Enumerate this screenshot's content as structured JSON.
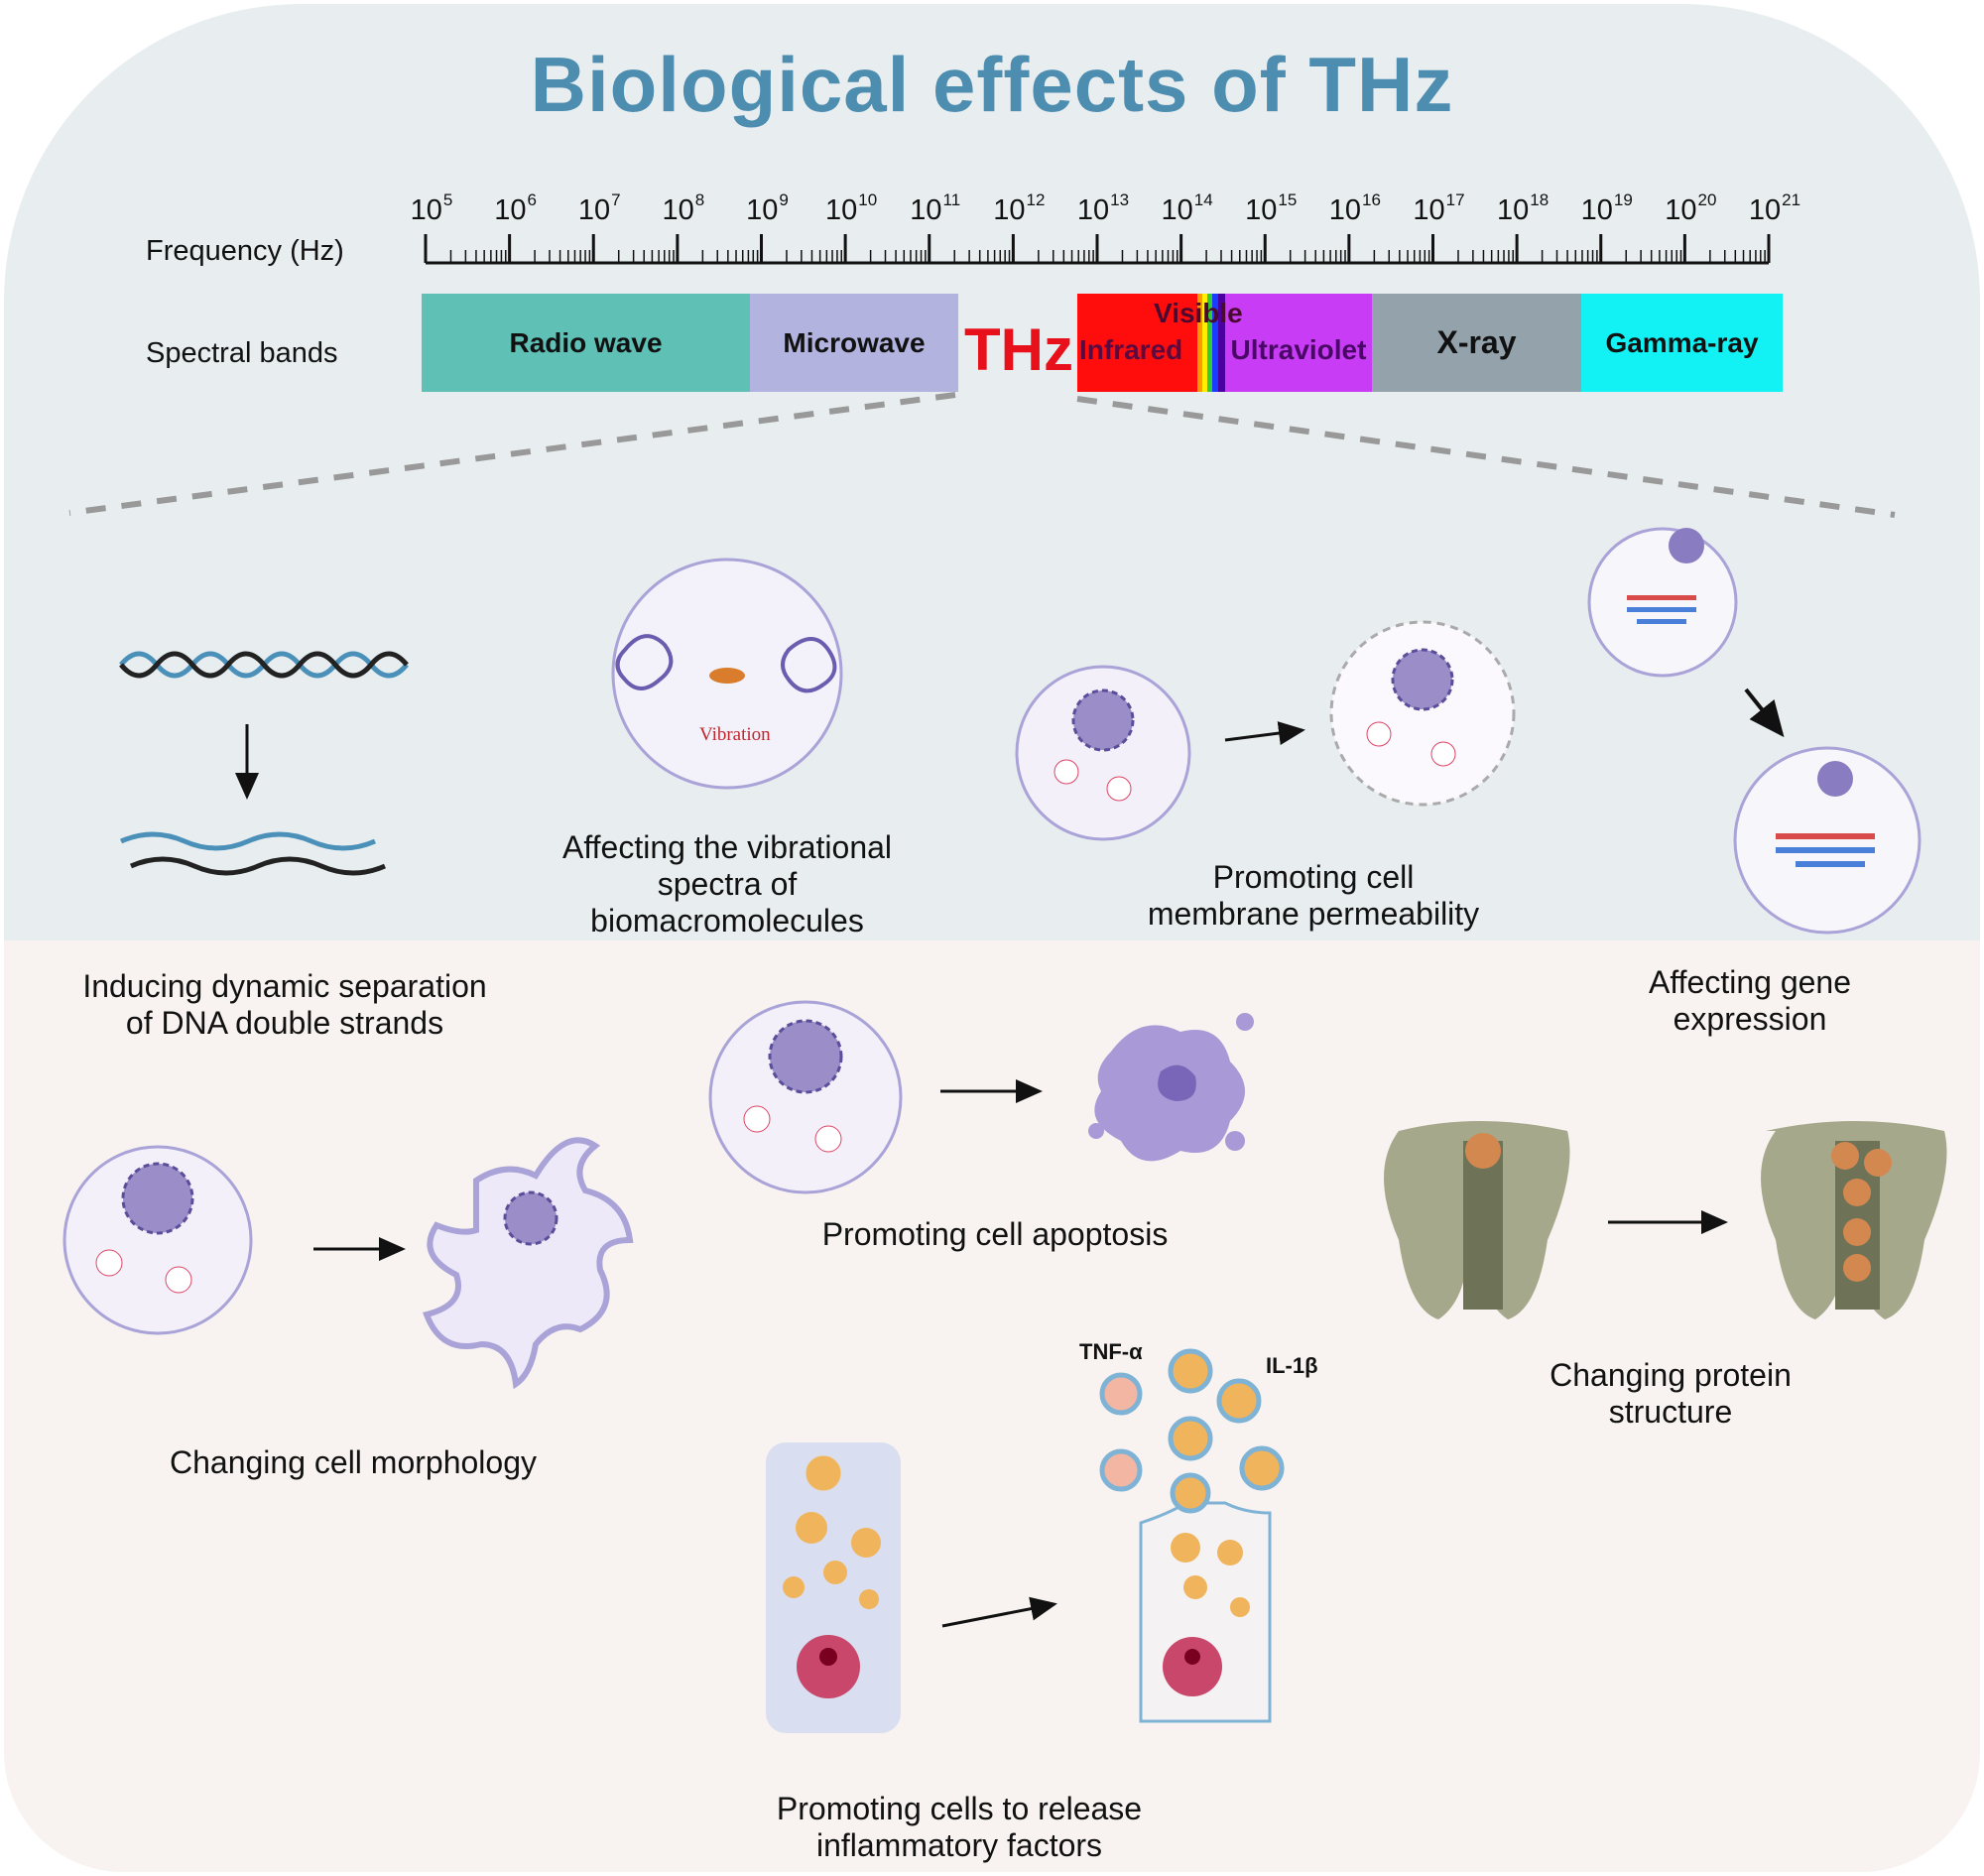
{
  "title": "Biological effects of  THz",
  "axis": {
    "label": "Frequency (Hz)",
    "base": "10",
    "exponents": [
      "5",
      "6",
      "7",
      "8",
      "9",
      "10",
      "11",
      "12",
      "13",
      "14",
      "15",
      "16",
      "17",
      "18",
      "19",
      "20",
      "21"
    ]
  },
  "bands": {
    "label": "Spectral bands",
    "radio": "Radio wave",
    "microwave": "Microwave",
    "thz": "THz",
    "visible": "Visible",
    "infrared": "Infrared",
    "ultraviolet": "Ultraviolet",
    "xray": "X-ray",
    "gamma": "Gamma-ray",
    "colors": {
      "radio": "#5fc0b6",
      "microwave": "#b3b3e0",
      "thz": "#e8101a",
      "infrared": "#ff0d0d",
      "ultraviolet": "#c93cf6",
      "xray": "#93a2ab",
      "gamma": "#12f1f3"
    }
  },
  "effects": {
    "dna": [
      "Inducing dynamic separation",
      "of DNA double strands"
    ],
    "vibration_label": "Vibration",
    "vibrational": [
      "Affecting the vibrational",
      "spectra of",
      "biomacromolecules"
    ],
    "membrane": [
      "Promoting cell",
      "membrane permeability"
    ],
    "gene": "Affecting gene expression",
    "apoptosis": "Promoting cell apoptosis",
    "morphology": "Changing cell morphology",
    "protein": [
      "Changing protein",
      "structure"
    ],
    "inflammatory": [
      "Promoting cells to release",
      "inflammatory factors"
    ],
    "tnf": "TNF-α",
    "il": "IL-1β"
  }
}
